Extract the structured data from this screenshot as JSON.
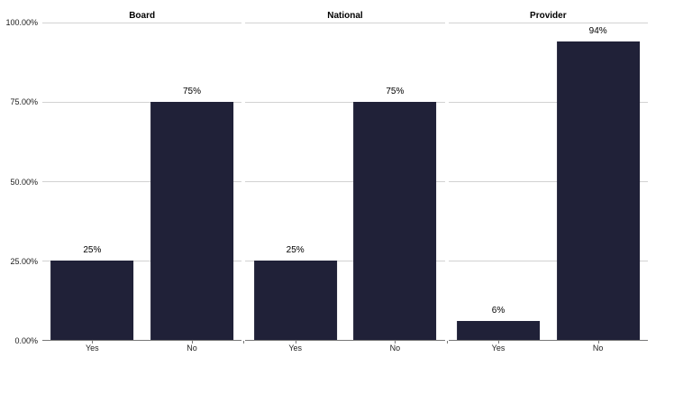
{
  "chart_data": {
    "type": "bar",
    "title": "",
    "categories": [
      "Yes",
      "No"
    ],
    "panels": [
      {
        "title": "Board",
        "values": [
          25,
          75
        ],
        "value_labels": [
          "25%",
          "75%"
        ]
      },
      {
        "title": "National",
        "values": [
          25,
          75
        ],
        "value_labels": [
          "25%",
          "75%"
        ]
      },
      {
        "title": "Provider",
        "values": [
          6,
          94
        ],
        "value_labels": [
          "6%",
          "94%"
        ]
      }
    ],
    "y_axis": {
      "ticks_top_down": [
        "100.00%",
        "75.00%",
        "50.00%",
        "25.00%",
        "0.00%"
      ],
      "range": [
        0,
        100
      ],
      "gridlines": true
    },
    "xlabel": "",
    "ylabel": "",
    "legend": "none",
    "bar_color": "#202138",
    "gridline_color": "#d2d2d2",
    "axis_color": "#787878"
  }
}
